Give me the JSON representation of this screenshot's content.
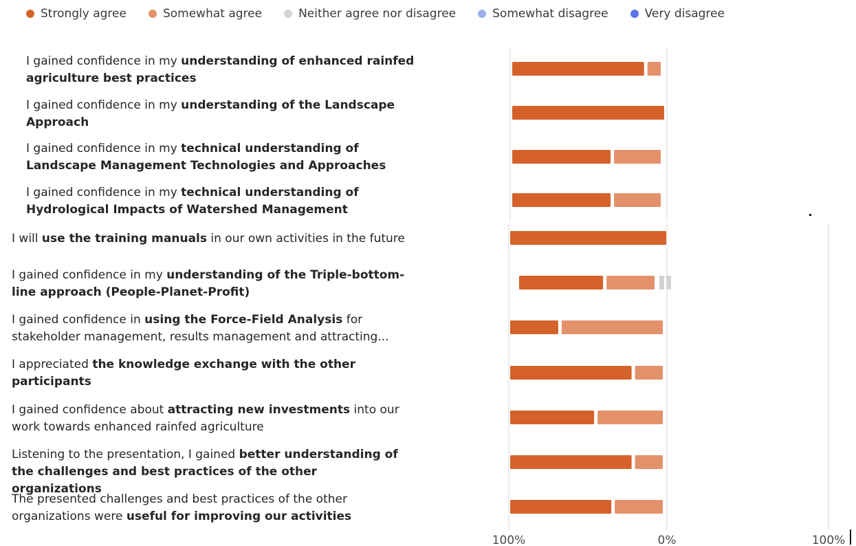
{
  "legend": [
    {
      "label": "Strongly agree",
      "color": "#d4622a"
    },
    {
      "label": "Somewhat agree",
      "color": "#e3916a"
    },
    {
      "label": "Neither agree nor disagree",
      "color": "#d3d3d3"
    },
    {
      "label": "Somewhat disagree",
      "color": "#9aaef0"
    },
    {
      "label": "Very disagree",
      "color": "#5a74e6"
    }
  ],
  "rows": [
    {
      "pre": "I gained confidence in my ",
      "bold": "understanding of enhanced rainfed agriculture best practices",
      "post": ""
    },
    {
      "pre": "I gained confidence in my ",
      "bold": "understanding of the Landscape Approach",
      "post": ""
    },
    {
      "pre": "I gained confidence in my ",
      "bold": "technical understanding of Landscape Management Technologies and Approaches",
      "post": ""
    },
    {
      "pre": "I gained confidence in my ",
      "bold": "technical understanding of Hydrological Impacts of Watershed Management",
      "post": ""
    },
    {
      "pre": "I will ",
      "bold": "use the training manuals",
      "post": " in our own activities in the future"
    },
    {
      "pre": "I gained confidence in my ",
      "bold": "understanding of the Triple-bottom-line approach (People-Planet-Profit)",
      "post": ""
    },
    {
      "pre": "I gained confidence in ",
      "bold": "using the Force-Field Analysis",
      "post": " for stakeholder management, results management and attracting..."
    },
    {
      "pre": "I appreciated ",
      "bold": "the knowledge exchange with the other participants",
      "post": ""
    },
    {
      "pre": "I gained confidence about ",
      "bold": "attracting new investments",
      "post": " into our work towards enhanced rainfed agriculture"
    },
    {
      "pre": "Listening to the presentation, I gained ",
      "bold": "better understanding of the challenges and best practices of the other organizations",
      "post": ""
    },
    {
      "pre": "The presented challenges and best practices of the other organizations were ",
      "bold": "useful for improving our activities",
      "post": ""
    }
  ],
  "chart_data": {
    "type": "bar",
    "orientation": "horizontal-diverging",
    "categories": [
      "I gained confidence in my understanding of enhanced rainfed agriculture best practices",
      "I gained confidence in my understanding of the Landscape Approach",
      "I gained confidence in my technical understanding of Landscape Management Technologies and Approaches",
      "I gained confidence in my technical understanding of Hydrological Impacts of Watershed Management",
      "I will use the training manuals in our own activities in the future",
      "I gained confidence in my understanding of the Triple-bottom-line approach (People-Planet-Profit)",
      "I gained confidence in using the Force-Field Analysis for stakeholder management, results management and attracting...",
      "I appreciated the knowledge exchange with the other participants",
      "I gained confidence about attracting new investments into our work towards enhanced rainfed agriculture",
      "Listening to the presentation, I gained better understanding of the challenges and best practices of the other organizations",
      "The presented challenges and best practices of the other organizations were useful for improving our activities"
    ],
    "series": [
      {
        "name": "Strongly agree",
        "values": [
          89,
          100,
          67,
          67,
          100,
          56,
          33,
          80,
          56,
          80,
          67
        ]
      },
      {
        "name": "Somewhat agree",
        "values": [
          11,
          0,
          33,
          33,
          0,
          33,
          67,
          20,
          44,
          20,
          33
        ]
      },
      {
        "name": "Neither agree nor disagree",
        "values": [
          0,
          0,
          0,
          0,
          0,
          11,
          0,
          0,
          0,
          0,
          0
        ]
      },
      {
        "name": "Somewhat disagree",
        "values": [
          0,
          0,
          0,
          0,
          0,
          0,
          0,
          0,
          0,
          0,
          0
        ]
      },
      {
        "name": "Very disagree",
        "values": [
          0,
          0,
          0,
          0,
          0,
          0,
          0,
          0,
          0,
          0,
          0
        ]
      }
    ],
    "x_tick_labels": [
      "100%",
      "0%",
      "100%"
    ],
    "xlim": [
      -100,
      100
    ],
    "grid": true,
    "legend_position": "top"
  }
}
